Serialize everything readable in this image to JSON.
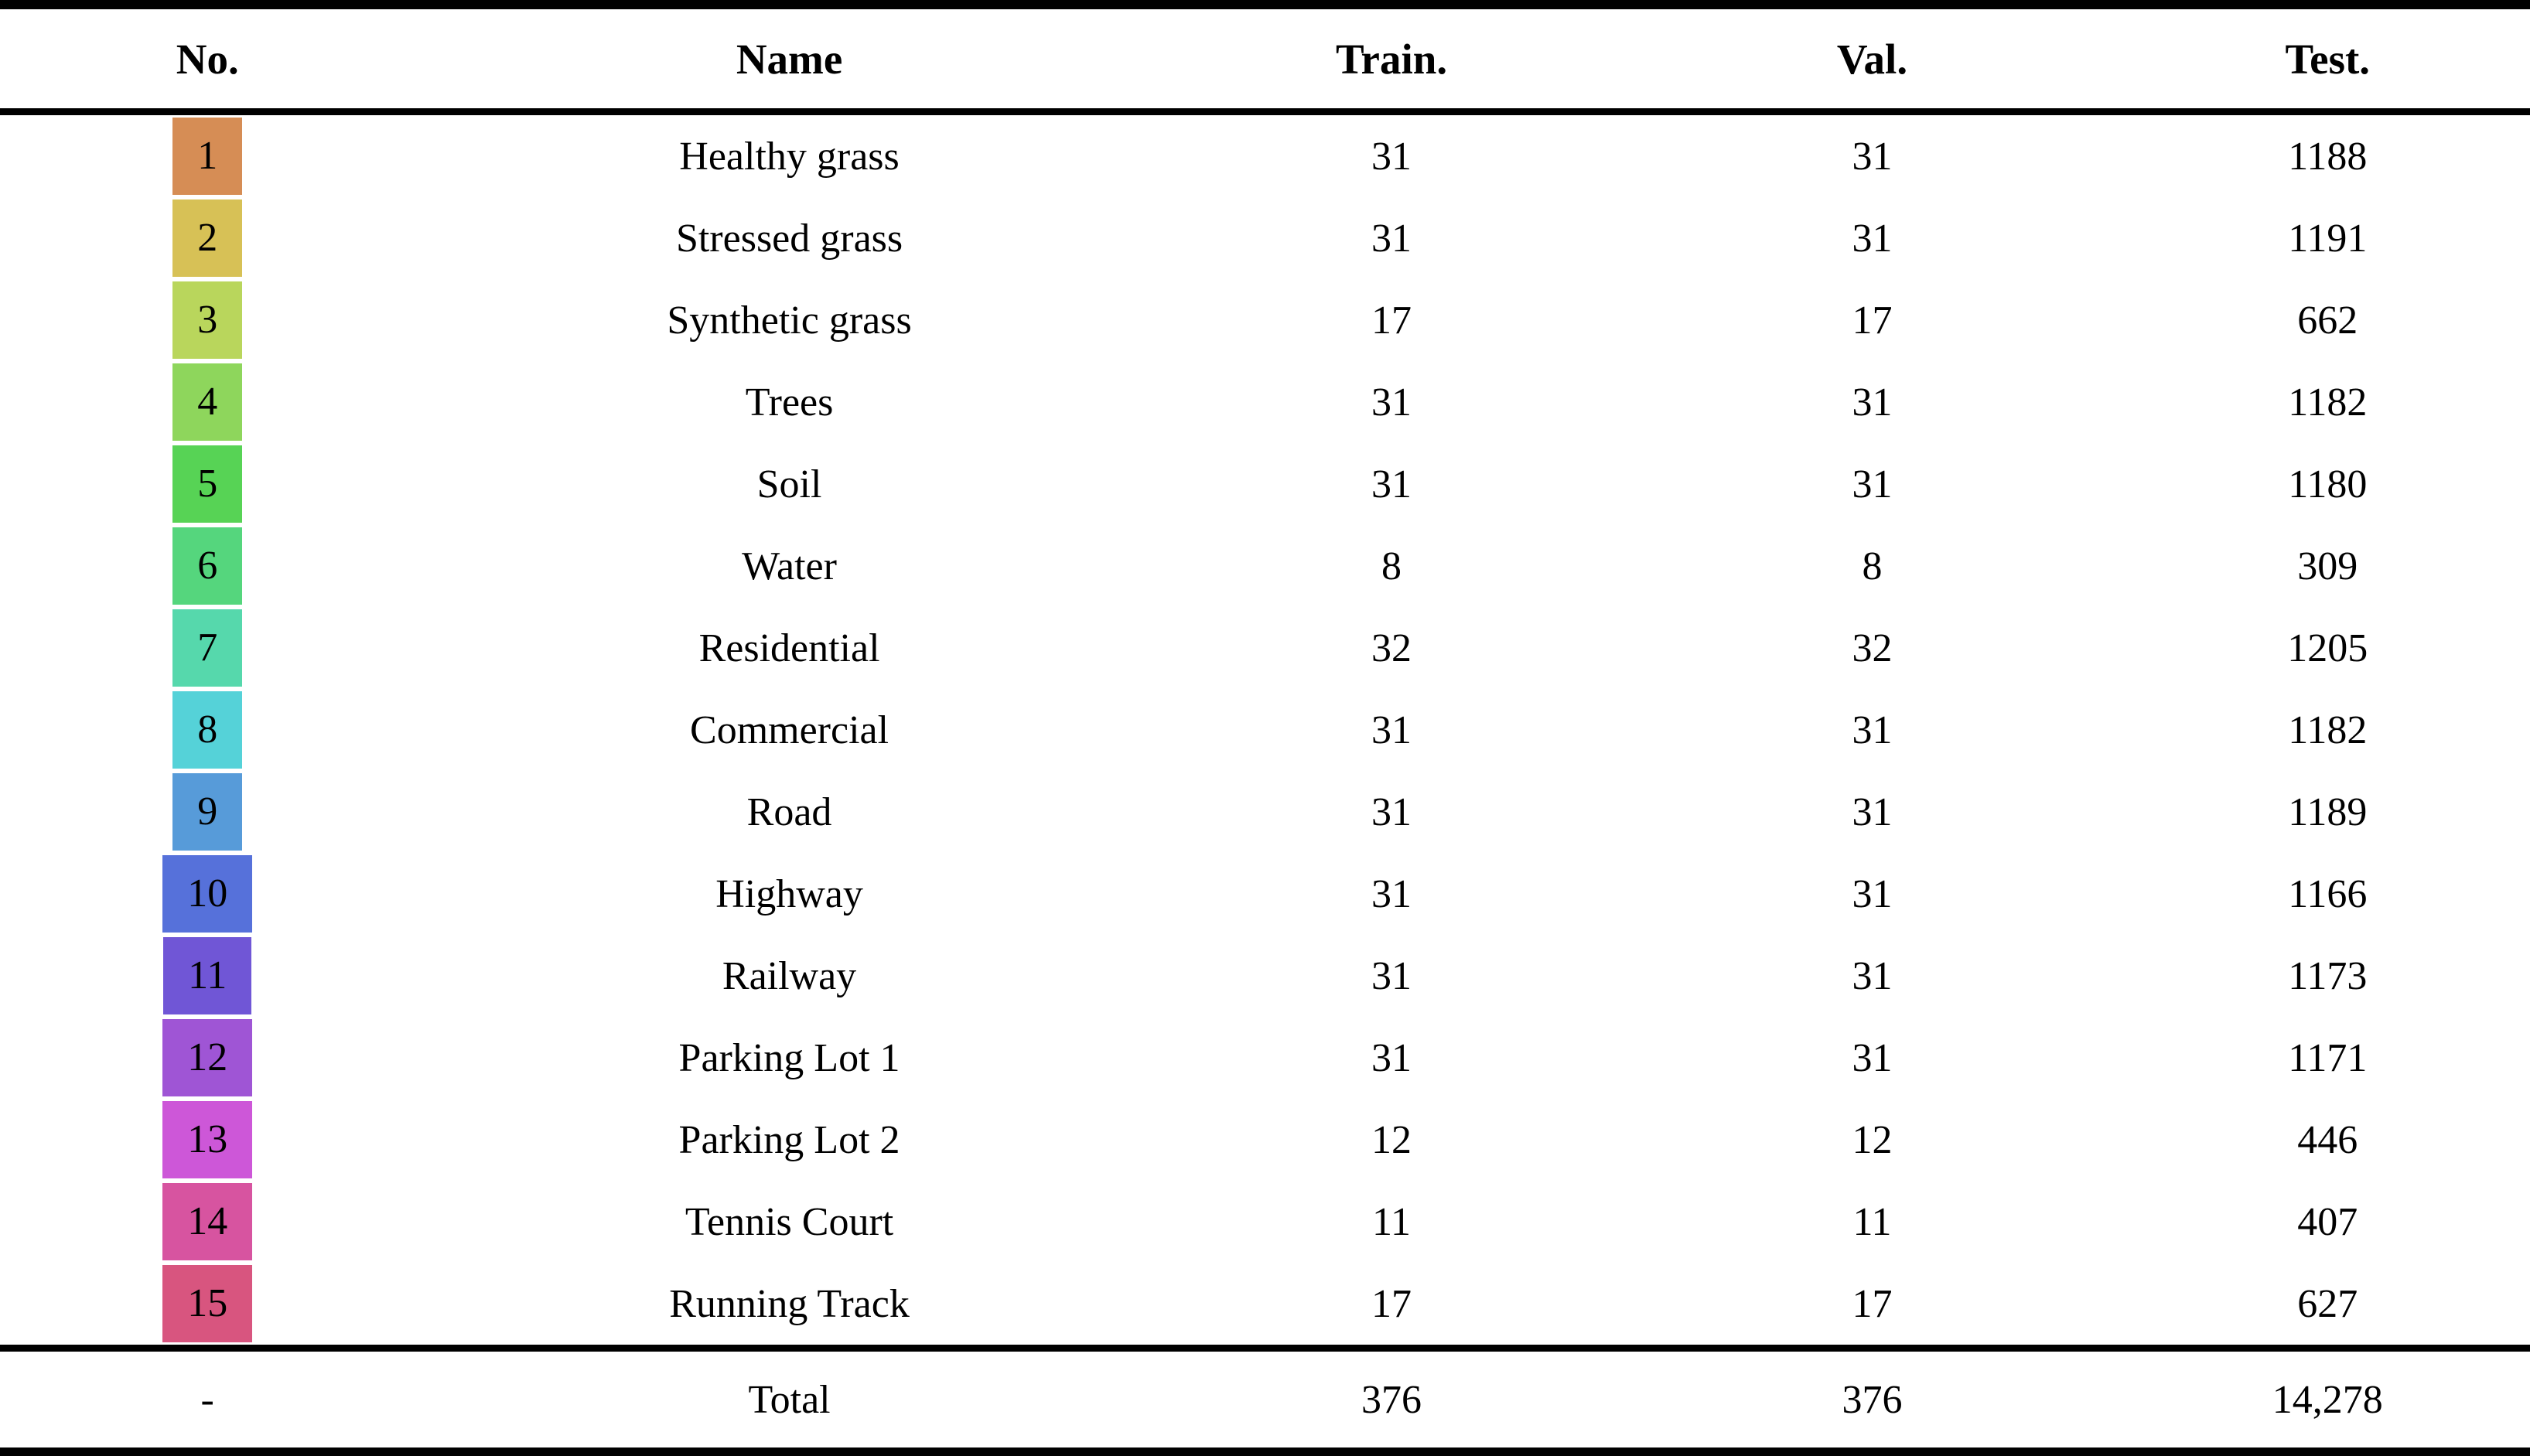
{
  "table": {
    "columns": {
      "no": "No.",
      "name": "Name",
      "train": "Train.",
      "val": "Val.",
      "test": "Test."
    },
    "rows": [
      {
        "no": "1",
        "name": "Healthy grass",
        "train": "31",
        "val": "31",
        "test": "1188",
        "color": "#d68d55"
      },
      {
        "no": "2",
        "name": "Stressed grass",
        "train": "31",
        "val": "31",
        "test": "1191",
        "color": "#d7c156"
      },
      {
        "no": "3",
        "name": "Synthetic grass",
        "train": "17",
        "val": "17",
        "test": "662",
        "color": "#b9d65c"
      },
      {
        "no": "4",
        "name": "Trees",
        "train": "31",
        "val": "31",
        "test": "1182",
        "color": "#8ed65c"
      },
      {
        "no": "5",
        "name": "Soil",
        "train": "31",
        "val": "31",
        "test": "1180",
        "color": "#57d355"
      },
      {
        "no": "6",
        "name": "Water",
        "train": "8",
        "val": "8",
        "test": "309",
        "color": "#55d67d"
      },
      {
        "no": "7",
        "name": "Residential",
        "train": "32",
        "val": "32",
        "test": "1205",
        "color": "#56d8ac"
      },
      {
        "no": "8",
        "name": "Commercial",
        "train": "31",
        "val": "31",
        "test": "1182",
        "color": "#55d2d8"
      },
      {
        "no": "9",
        "name": "Road",
        "train": "31",
        "val": "31",
        "test": "1189",
        "color": "#579bd9"
      },
      {
        "no": "10",
        "name": "Highway",
        "train": "31",
        "val": "31",
        "test": "1166",
        "color": "#5671da"
      },
      {
        "no": "11",
        "name": "Railway",
        "train": "31",
        "val": "31",
        "test": "1173",
        "color": "#7056d6"
      },
      {
        "no": "12",
        "name": "Parking Lot 1",
        "train": "31",
        "val": "31",
        "test": "1171",
        "color": "#9f55d5"
      },
      {
        "no": "13",
        "name": "Parking Lot 2",
        "train": "12",
        "val": "12",
        "test": "446",
        "color": "#cd57d8"
      },
      {
        "no": "14",
        "name": "Tennis Court",
        "train": "11",
        "val": "11",
        "test": "407",
        "color": "#d754a0"
      },
      {
        "no": "15",
        "name": "Running Track",
        "train": "17",
        "val": "17",
        "test": "627",
        "color": "#d8557f"
      }
    ],
    "total": {
      "no": "-",
      "name": "Total",
      "train": "376",
      "val": "376",
      "test": "14,278"
    }
  },
  "colors": {
    "rule": "#000000",
    "background": "#ffffff",
    "text": "#000000"
  }
}
